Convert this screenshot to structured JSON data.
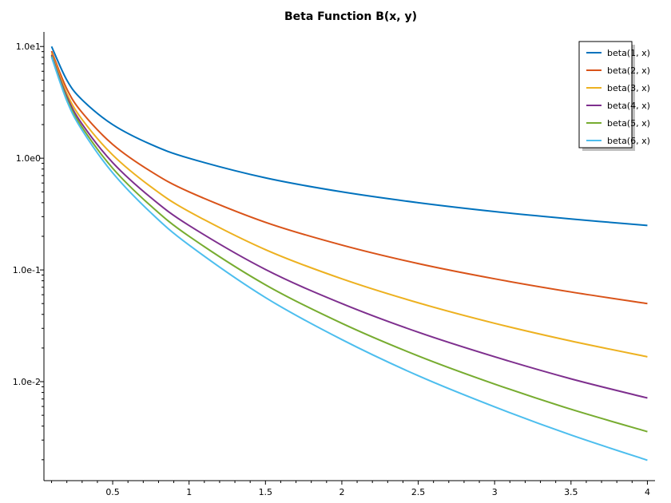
{
  "chart_data": {
    "type": "line",
    "title": "Beta Function B(x, y)",
    "xlabel": "",
    "ylabel": "",
    "xscale": "linear",
    "yscale": "log",
    "xlim": [
      0.05,
      4.05
    ],
    "ylim": [
      0.0013,
      13.5
    ],
    "x_ticks": [
      0.5,
      1,
      1.5,
      2,
      2.5,
      3,
      3.5,
      4
    ],
    "x_tick_labels": [
      "0.5",
      "1",
      "1.5",
      "2",
      "2.5",
      "3",
      "3.5",
      "4"
    ],
    "y_ticks": [
      10,
      1,
      0.1,
      0.01
    ],
    "y_tick_labels": [
      "1.0e1",
      "1.0e0",
      "1.0e-1",
      "1.0e-2"
    ],
    "grid": false,
    "legend_position": "top-right",
    "x": [
      0.1,
      0.2,
      0.3,
      0.5,
      0.75,
      1,
      1.5,
      2,
      2.5,
      3,
      3.5,
      4
    ],
    "series": [
      {
        "name": "beta(1, x)",
        "color": "#0072BD",
        "values": [
          10.0,
          5.0,
          3.33,
          2.0,
          1.33,
          1.0,
          0.667,
          0.5,
          0.4,
          0.333,
          0.286,
          0.25
        ]
      },
      {
        "name": "beta(2, x)",
        "color": "#D95319",
        "values": [
          9.09,
          4.17,
          2.56,
          1.33,
          0.762,
          0.5,
          0.267,
          0.167,
          0.114,
          0.0833,
          0.0635,
          0.05
        ]
      },
      {
        "name": "beta(3, x)",
        "color": "#EDB120",
        "values": [
          8.66,
          3.79,
          2.22,
          1.07,
          0.555,
          0.333,
          0.152,
          0.0833,
          0.0508,
          0.0333,
          0.0231,
          0.0167
        ]
      },
      {
        "name": "beta(4, x)",
        "color": "#7E2F8E",
        "values": [
          8.39,
          3.56,
          2.02,
          0.914,
          0.444,
          0.25,
          0.101,
          0.05,
          0.0277,
          0.0167,
          0.0106,
          0.00714
        ]
      },
      {
        "name": "beta(5, x)",
        "color": "#77AC30",
        "values": [
          8.19,
          3.39,
          1.89,
          0.813,
          0.374,
          0.2,
          0.0736,
          0.0333,
          0.017,
          0.00952,
          0.00566,
          0.00357
        ]
      },
      {
        "name": "beta(6, x)",
        "color": "#4DBEEE",
        "values": [
          8.04,
          3.26,
          1.78,
          0.739,
          0.325,
          0.167,
          0.0566,
          0.0238,
          0.0113,
          0.00595,
          0.00333,
          0.00198
        ]
      }
    ]
  }
}
